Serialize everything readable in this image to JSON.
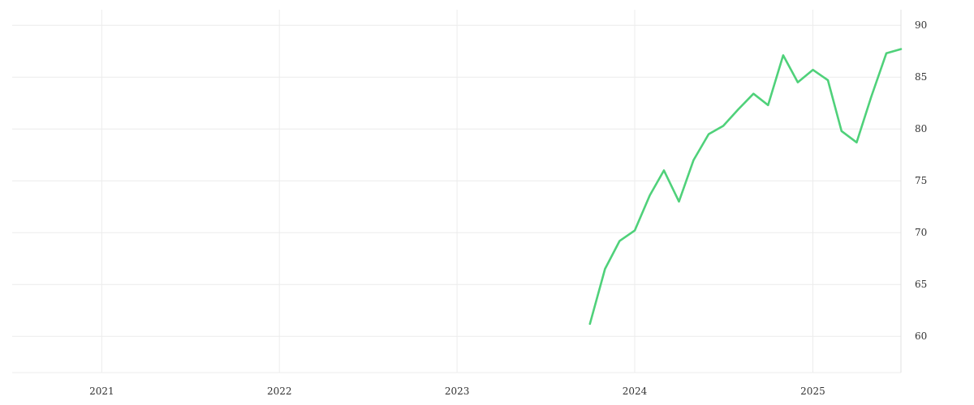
{
  "chart_data": {
    "type": "line",
    "title": "",
    "xlabel": "",
    "ylabel": "",
    "x_axis": {
      "type": "date",
      "range": [
        "2020-07-01",
        "2025-07-01"
      ],
      "ticks": [
        "2021-01-01",
        "2022-01-01",
        "2023-01-01",
        "2024-01-01",
        "2025-01-01"
      ],
      "tick_labels": [
        "2021",
        "2022",
        "2023",
        "2024",
        "2025"
      ]
    },
    "y_axis": {
      "position": "right",
      "range": [
        56.5,
        91.5
      ],
      "ticks": [
        60,
        65,
        70,
        75,
        80,
        85,
        90
      ],
      "tick_labels": [
        "60",
        "65",
        "70",
        "75",
        "80",
        "85",
        "90"
      ]
    },
    "grid": true,
    "legend": "none",
    "series": [
      {
        "color": "#4fd17a",
        "points": [
          {
            "x": "2023-10-01",
            "y": 61.2
          },
          {
            "x": "2023-11-01",
            "y": 66.5
          },
          {
            "x": "2023-12-01",
            "y": 69.2
          },
          {
            "x": "2024-01-01",
            "y": 70.2
          },
          {
            "x": "2024-02-01",
            "y": 73.6
          },
          {
            "x": "2024-03-01",
            "y": 76.0
          },
          {
            "x": "2024-04-01",
            "y": 73.0
          },
          {
            "x": "2024-05-01",
            "y": 77.0
          },
          {
            "x": "2024-06-01",
            "y": 79.5
          },
          {
            "x": "2024-07-01",
            "y": 80.3
          },
          {
            "x": "2024-08-01",
            "y": 81.9
          },
          {
            "x": "2024-09-01",
            "y": 83.4
          },
          {
            "x": "2024-10-01",
            "y": 82.3
          },
          {
            "x": "2024-11-01",
            "y": 87.1
          },
          {
            "x": "2024-12-01",
            "y": 84.5
          },
          {
            "x": "2025-01-01",
            "y": 85.7
          },
          {
            "x": "2025-02-01",
            "y": 84.7
          },
          {
            "x": "2025-03-01",
            "y": 79.8
          },
          {
            "x": "2025-04-01",
            "y": 78.7
          },
          {
            "x": "2025-05-01",
            "y": 83.1
          },
          {
            "x": "2025-06-01",
            "y": 87.3
          },
          {
            "x": "2025-07-01",
            "y": 87.7
          }
        ]
      }
    ]
  }
}
